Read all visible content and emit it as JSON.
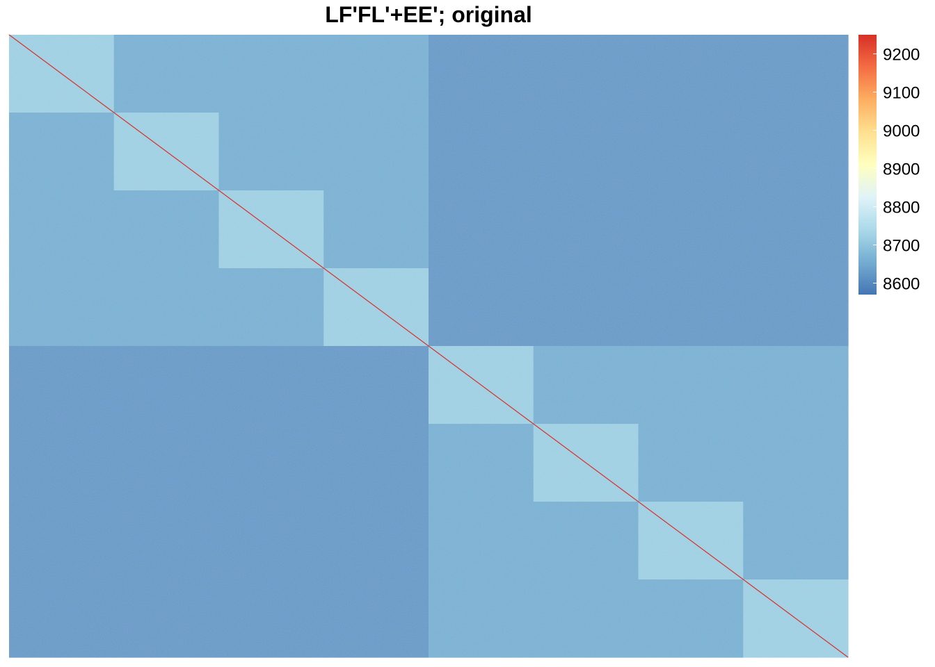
{
  "chart_data": {
    "type": "heatmap",
    "title": "LF'FL'+EE'; original",
    "xlabel": "",
    "ylabel": "",
    "grid": false,
    "legend_position": "right",
    "color_scale": {
      "min": 8570,
      "max": 9250,
      "ticks": [
        9200,
        9100,
        9000,
        8900,
        8800,
        8700,
        8600
      ],
      "colors": [
        "#4575b4",
        "#74add1",
        "#abd9e9",
        "#e0f3f8",
        "#ffffbf",
        "#fee090",
        "#fdae61",
        "#f46d43",
        "#d73027"
      ]
    },
    "block_structure": {
      "n_groups": 2,
      "blocks_per_group": 4,
      "diagonal_block_value": 8720,
      "within_group_value": 8660,
      "between_group_value": 8625,
      "diagonal_value": 9250
    },
    "blocks": [
      {
        "row": 1,
        "col": 1,
        "value": 8720
      },
      {
        "row": 2,
        "col": 2,
        "value": 8720
      },
      {
        "row": 3,
        "col": 3,
        "value": 8720
      },
      {
        "row": 4,
        "col": 4,
        "value": 8720
      },
      {
        "row": 5,
        "col": 5,
        "value": 8720
      },
      {
        "row": 6,
        "col": 6,
        "value": 8720
      },
      {
        "row": 7,
        "col": 7,
        "value": 8720
      },
      {
        "row": 8,
        "col": 8,
        "value": 8720
      }
    ]
  }
}
